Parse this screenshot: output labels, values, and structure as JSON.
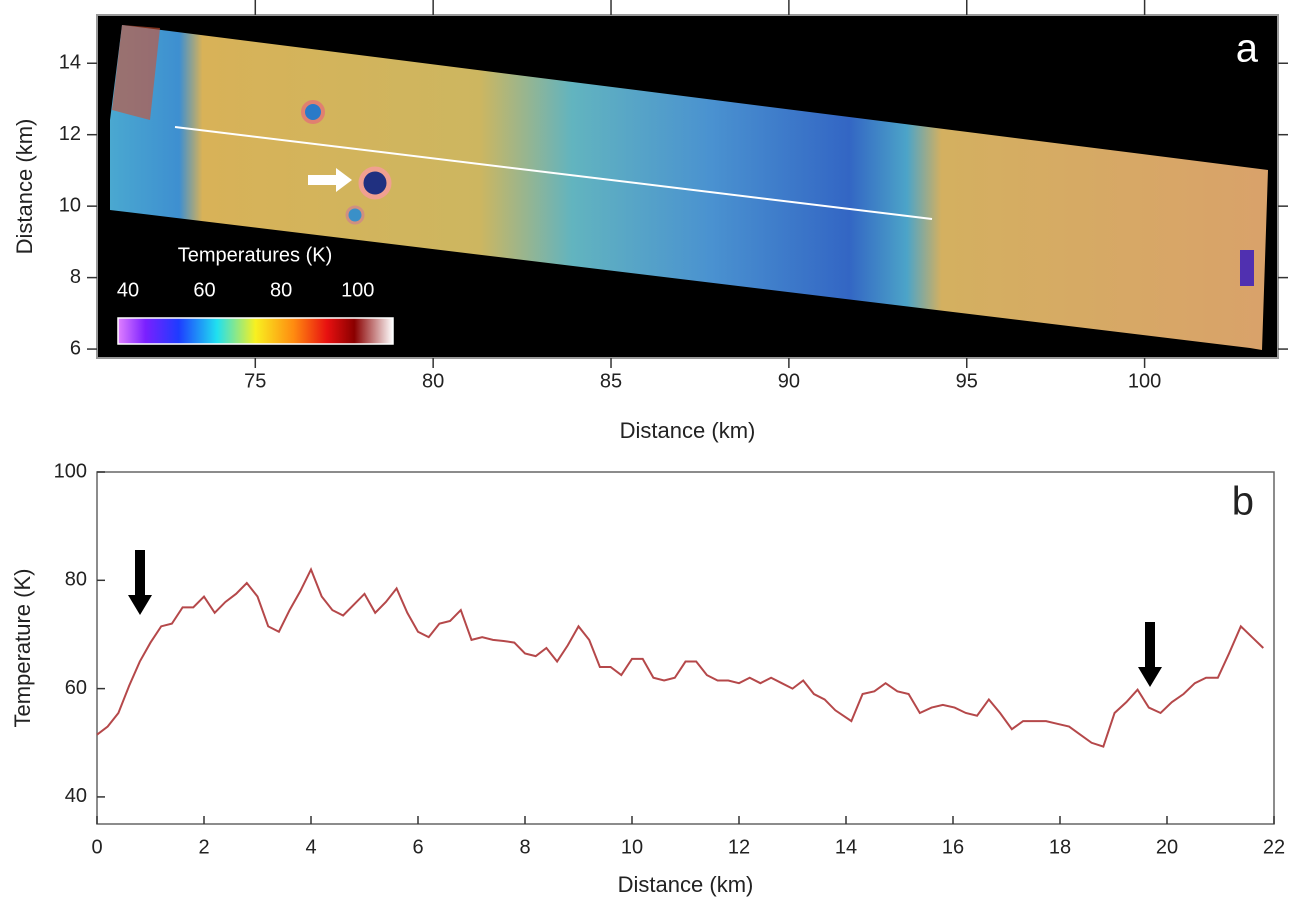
{
  "chart_data": [
    {
      "type": "image",
      "label": "a",
      "xlabel": "Distance (km)",
      "ylabel": "Distance (km)",
      "xlim": [
        70.55,
        103.75
      ],
      "ylim": [
        5.75,
        15.35
      ],
      "xticks": [
        75,
        80,
        85,
        90,
        95,
        100
      ],
      "yticks": [
        6,
        8,
        10,
        12,
        14
      ],
      "colorbar": {
        "title": "Temperatures (K)",
        "lim": [
          37.4,
          109.2
        ],
        "ticks": [
          40,
          60,
          80,
          100
        ]
      }
    },
    {
      "type": "line",
      "label": "b",
      "xlabel": "Distance (km)",
      "ylabel": "Temperature (K)",
      "xlim": [
        0,
        22
      ],
      "ylim": [
        35,
        100
      ],
      "xticks": [
        0,
        2,
        4,
        6,
        8,
        10,
        12,
        14,
        16,
        18,
        20,
        22
      ],
      "yticks": [
        40,
        60,
        80,
        100
      ],
      "series": [
        {
          "color": "#b5484a",
          "x": [
            0,
            0.2,
            0.4,
            0.6,
            0.8,
            1.0,
            1.2,
            1.4,
            1.6,
            1.8,
            2.0,
            2.2,
            2.4,
            2.6,
            2.8,
            3.0,
            3.2,
            3.4,
            3.6,
            3.8,
            4.0,
            4.2,
            4.4,
            4.6,
            4.8,
            5.0,
            5.2,
            5.4,
            5.6,
            5.8,
            6.0,
            6.2,
            6.4,
            6.6,
            6.8,
            7.0,
            7.2,
            7.4,
            7.6,
            7.8,
            8.0,
            8.2,
            8.4,
            8.6,
            8.8,
            9.0,
            9.2,
            9.4,
            9.6,
            9.8,
            10.0,
            10.2,
            10.4,
            10.6,
            10.8,
            11.0,
            11.2,
            11.4,
            11.6,
            11.8,
            12.0,
            12.2,
            12.4,
            12.6,
            12.8,
            13.0,
            13.2,
            13.4,
            13.6,
            13.8,
            14.1,
            14.31,
            14.53,
            14.74,
            14.96,
            15.17,
            15.38,
            15.6,
            15.81,
            16.03,
            16.24,
            16.45,
            16.67,
            16.88,
            17.1,
            17.31,
            17.52,
            17.74,
            17.95,
            18.17,
            18.38,
            18.59,
            18.81,
            19.02,
            19.24,
            19.45,
            19.66,
            19.88,
            20.09,
            20.31,
            20.52,
            20.73,
            20.95,
            21.16,
            21.38,
            21.59,
            21.8
          ],
          "values": [
            51.5,
            53,
            55.5,
            60.5,
            65,
            68.5,
            71.5,
            72,
            75,
            75,
            77,
            74,
            76,
            77.5,
            79.5,
            77,
            71.5,
            70.5,
            74.5,
            78,
            82,
            77,
            74.5,
            73.5,
            75.5,
            77.5,
            74,
            76,
            78.5,
            74,
            70.5,
            69.5,
            72,
            72.5,
            74.5,
            69,
            69.5,
            69,
            68.8,
            68.5,
            66.5,
            66,
            67.5,
            65,
            68,
            71.5,
            69,
            64,
            64,
            62.5,
            65.5,
            65.5,
            62,
            61.5,
            62,
            65,
            65,
            62.5,
            61.5,
            61.5,
            61,
            62,
            61,
            62,
            61,
            60,
            61.5,
            59,
            58,
            56,
            54,
            59,
            59.5,
            61,
            59.5,
            59,
            55.5,
            56.5,
            57,
            56.5,
            55.5,
            55,
            58,
            55.5,
            52.5,
            54,
            54,
            54,
            53.5,
            53,
            51.5,
            50,
            49.3,
            55.5,
            57.5,
            59.8,
            56.5,
            55.5,
            57.5,
            59,
            61,
            62,
            62,
            66.5,
            71.5,
            69.5,
            67.5
          ]
        }
      ]
    }
  ]
}
